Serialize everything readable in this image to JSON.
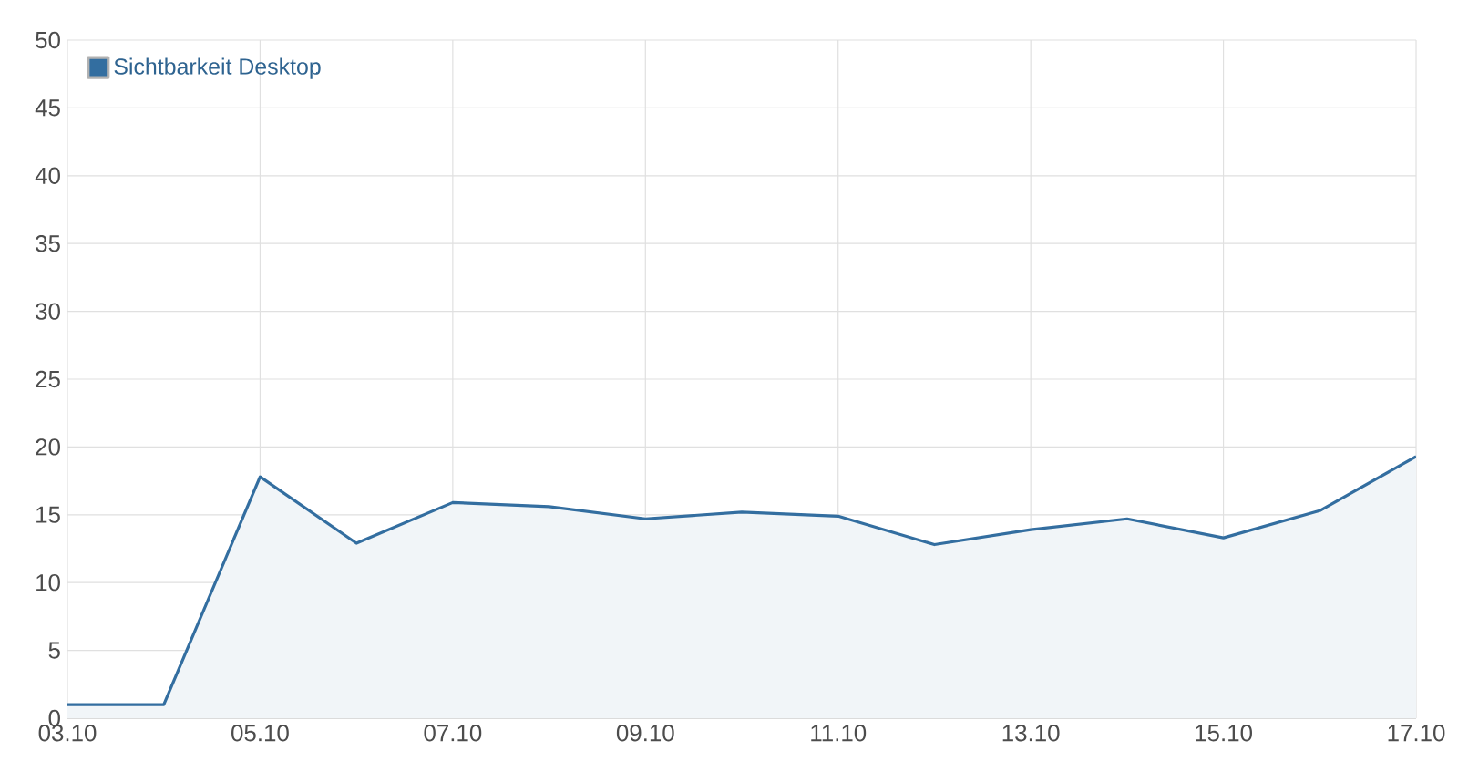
{
  "chart_data": {
    "type": "area",
    "categories": [
      "03.10",
      null,
      "05.10",
      null,
      "07.10",
      null,
      "09.10",
      null,
      "11.10",
      null,
      "13.10",
      null,
      "15.10",
      null,
      "17.10"
    ],
    "series": [
      {
        "name": "Sichtbarkeit Desktop",
        "color": "#336ea0",
        "values": [
          1,
          1,
          17.8,
          12.9,
          15.9,
          15.6,
          14.7,
          15.2,
          14.9,
          12.8,
          13.9,
          14.7,
          13.3,
          15.3,
          19.3
        ]
      }
    ],
    "ylim": [
      0,
      50
    ],
    "yticks": [
      0,
      5,
      10,
      15,
      20,
      25,
      30,
      35,
      40,
      45,
      50
    ],
    "grid": true,
    "legend": "top left",
    "marker": "none"
  }
}
